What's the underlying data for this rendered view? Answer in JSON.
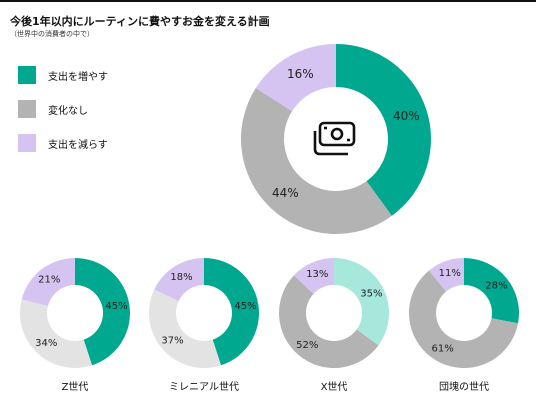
{
  "header": {
    "title": "今後1年以内にルーティンに費やすお金を変える計画",
    "subtitle": "（世界中の消費者の中で）"
  },
  "colors": {
    "increase": "#00a88f",
    "nochange": "#b3b3b3",
    "decrease": "#d5c4f2",
    "nochange_small": "#e3e3e3",
    "increase_x": "#a7e8dc"
  },
  "icons": {
    "center": "money-bills-icon"
  },
  "legend": [
    {
      "label": "支出を増やす"
    },
    {
      "label": "変化なし"
    },
    {
      "label": "支出を減らす"
    }
  ],
  "chart_data": [
    {
      "type": "pie",
      "categories": [
        "支出を増やす",
        "変化なし",
        "支出を減らす"
      ],
      "values": [
        40,
        44,
        16
      ],
      "labels": [
        "40%",
        "44%",
        "16%"
      ]
    },
    {
      "type": "pie",
      "title": "Z世代",
      "categories": [
        "支出を増やす",
        "変化なし",
        "支出を減らす"
      ],
      "values": [
        45,
        34,
        21
      ],
      "labels": [
        "45%",
        "34%",
        "21%"
      ]
    },
    {
      "type": "pie",
      "title": "ミレニアル世代",
      "categories": [
        "支出を増やす",
        "変化なし",
        "支出を減らす"
      ],
      "values": [
        45,
        37,
        18
      ],
      "labels": [
        "45%",
        "37%",
        "18%"
      ]
    },
    {
      "type": "pie",
      "title": "X世代",
      "categories": [
        "支出を増やす",
        "変化なし",
        "支出を減らす"
      ],
      "values": [
        35,
        52,
        13
      ],
      "labels": [
        "35%",
        "52%",
        "13%"
      ]
    },
    {
      "type": "pie",
      "title": "団塊の世代",
      "categories": [
        "支出を増やす",
        "変化なし",
        "支出を減らす"
      ],
      "values": [
        28,
        61,
        11
      ],
      "labels": [
        "28%",
        "61%",
        "11%"
      ]
    }
  ]
}
